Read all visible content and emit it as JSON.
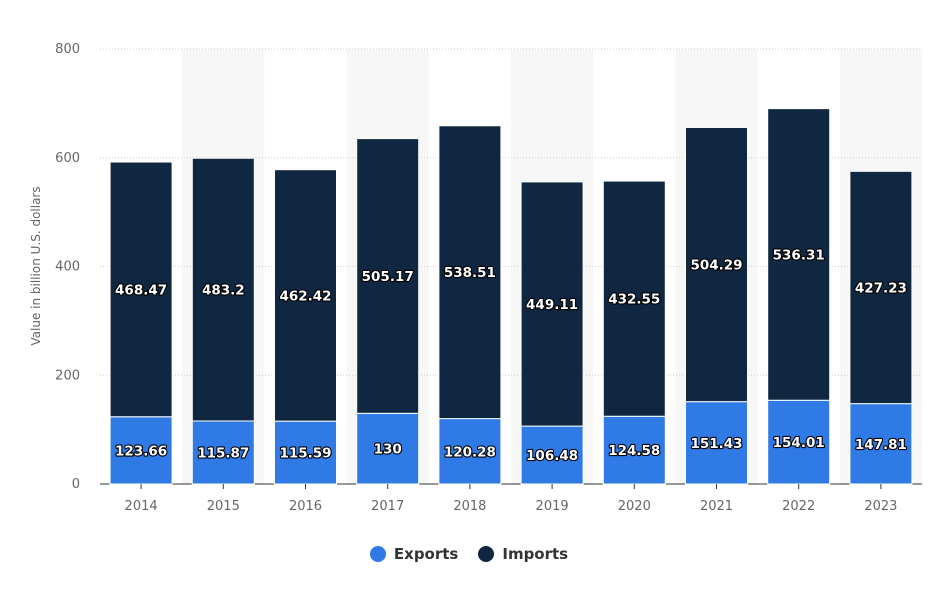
{
  "chart_data": {
    "type": "bar",
    "stacked": true,
    "categories": [
      "2014",
      "2015",
      "2016",
      "2017",
      "2018",
      "2019",
      "2020",
      "2021",
      "2022",
      "2023"
    ],
    "series": [
      {
        "name": "Exports",
        "color": "#2f7ae5",
        "values": [
          123.66,
          115.87,
          115.59,
          130,
          120.28,
          106.48,
          124.58,
          151.43,
          154.01,
          147.81
        ]
      },
      {
        "name": "Imports",
        "color": "#0f2740",
        "values": [
          468.47,
          483.2,
          462.42,
          505.17,
          538.51,
          449.11,
          432.55,
          504.29,
          536.31,
          427.23
        ]
      }
    ],
    "value_labels": {
      "Exports": [
        "123.66",
        "115.87",
        "115.59",
        "130",
        "120.28",
        "106.48",
        "124.58",
        "151.43",
        "154.01",
        "147.81"
      ],
      "Imports": [
        "468.47",
        "483.2",
        "462.42",
        "505.17",
        "538.51",
        "449.11",
        "432.55",
        "504.29",
        "536.31",
        "427.23"
      ]
    },
    "ylabel": "Value in billion U.S. dollars",
    "ylim": [
      0,
      800
    ],
    "yticks": [
      "0",
      "200",
      "400",
      "600",
      "800"
    ],
    "grid": true,
    "legend_position": "bottom"
  }
}
